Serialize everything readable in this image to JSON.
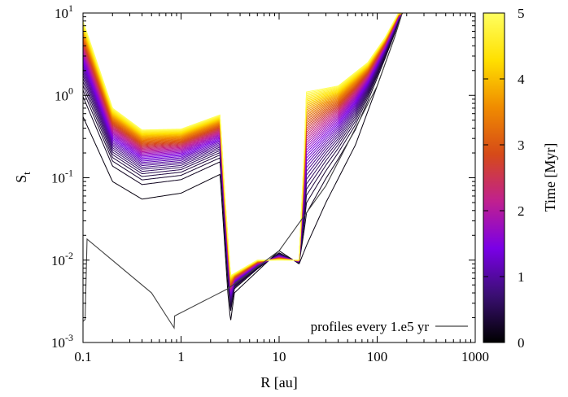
{
  "chart_data": {
    "type": "line",
    "xlabel": "R [au]",
    "ylabel": "S",
    "ylabel_sub": "t",
    "xscale": "log",
    "yscale": "log",
    "xlim": [
      0.1,
      1000
    ],
    "ylim": [
      0.001,
      10
    ],
    "x_ticks": [
      {
        "value": 0.1,
        "label": "0.1"
      },
      {
        "value": 1,
        "label": "1"
      },
      {
        "value": 10,
        "label": "10"
      },
      {
        "value": 100,
        "label": "100"
      },
      {
        "value": 1000,
        "label": "1000"
      }
    ],
    "y_ticks": [
      {
        "value": 0.001,
        "base": "10",
        "exp": "-3"
      },
      {
        "value": 0.01,
        "base": "10",
        "exp": "-2"
      },
      {
        "value": 0.1,
        "base": "10",
        "exp": "-1"
      },
      {
        "value": 1,
        "base": "10",
        "exp": "0"
      },
      {
        "value": 10,
        "base": "10",
        "exp": "1"
      }
    ],
    "legend": {
      "label": "profiles every 1.e5 yr",
      "position": "bottom-right"
    },
    "colorbar": {
      "label": "Time [Myr]",
      "range": [
        0,
        5
      ],
      "ticks": [
        {
          "value": 0,
          "label": "0"
        },
        {
          "value": 1,
          "label": "1"
        },
        {
          "value": 2,
          "label": "2"
        },
        {
          "value": 3,
          "label": "3"
        },
        {
          "value": 4,
          "label": "4"
        },
        {
          "value": 5,
          "label": "5"
        }
      ],
      "stops": [
        "#000000",
        "#3a0f72",
        "#7a00e6",
        "#c0208f",
        "#d64a18",
        "#f08c00",
        "#ffe000",
        "#ffff60"
      ]
    },
    "profile_count": 51,
    "profile_times_myr_step": 0.1,
    "profiles_key_shape": {
      "initial": {
        "time_myr": 0,
        "color": "#444444",
        "points": [
          [
            0.1,
            0.0018
          ],
          [
            0.105,
            0.0019
          ],
          [
            0.11,
            0.018
          ],
          [
            0.5,
            0.004
          ],
          [
            0.85,
            0.0015
          ],
          [
            0.86,
            0.0021
          ],
          [
            3,
            0.0045
          ],
          [
            10,
            0.013
          ],
          [
            30,
            0.08
          ],
          [
            100,
            1.3
          ],
          [
            150,
            5
          ],
          [
            180,
            10
          ]
        ]
      },
      "time_1": {
        "time_myr": 0.1,
        "points": [
          [
            0.1,
            0.55
          ],
          [
            0.2,
            0.09
          ],
          [
            0.4,
            0.055
          ],
          [
            1,
            0.065
          ],
          [
            2.5,
            0.11
          ],
          [
            3,
            0.004
          ],
          [
            3.2,
            0.0018
          ],
          [
            3.5,
            0.004
          ],
          [
            10,
            0.013
          ],
          [
            16,
            0.009
          ],
          [
            19,
            0.015
          ],
          [
            30,
            0.05
          ],
          [
            60,
            0.25
          ],
          [
            100,
            1.3
          ],
          [
            150,
            5
          ],
          [
            180,
            10
          ]
        ]
      },
      "time_final": {
        "time_myr": 5,
        "points": [
          [
            0.1,
            8
          ],
          [
            0.2,
            0.7
          ],
          [
            0.4,
            0.38
          ],
          [
            1,
            0.39
          ],
          [
            2.5,
            0.58
          ],
          [
            2.8,
            0.06
          ],
          [
            3.2,
            0.0065
          ],
          [
            6,
            0.01
          ],
          [
            16,
            0.01
          ],
          [
            18,
            0.2
          ],
          [
            19,
            1.1
          ],
          [
            40,
            1.3
          ],
          [
            80,
            2.5
          ],
          [
            120,
            5
          ],
          [
            165,
            10
          ]
        ]
      }
    }
  }
}
